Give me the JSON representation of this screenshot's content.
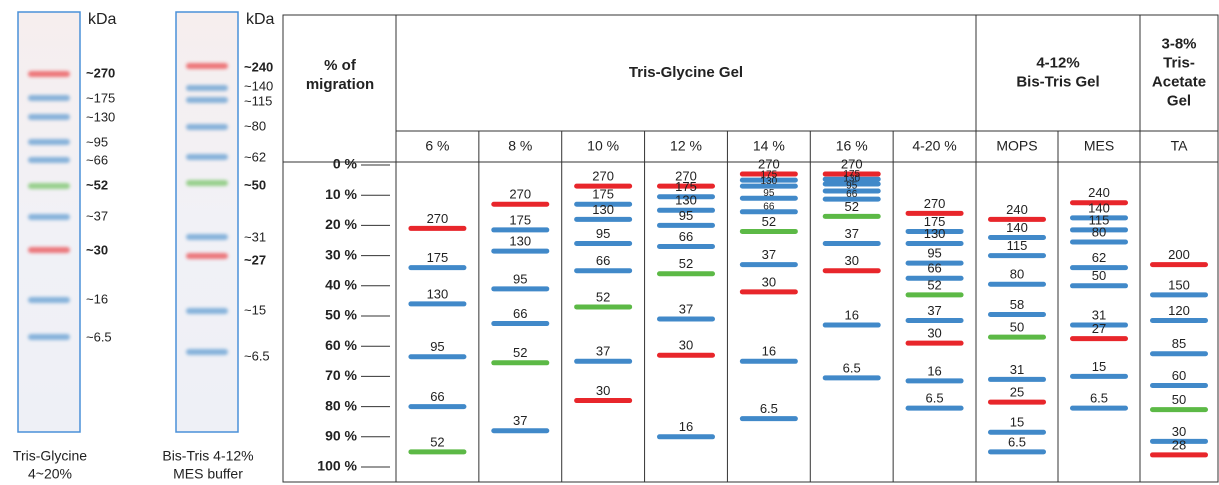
{
  "gels": [
    {
      "unit": "kDa",
      "caption": [
        "Tris-Glycine",
        "4~20%"
      ],
      "bands": [
        {
          "label": "~270",
          "color": "#e8262b",
          "bold": true
        },
        {
          "label": "~175",
          "color": "#4189c9",
          "bold": false
        },
        {
          "label": "~130",
          "color": "#4189c9",
          "bold": false
        },
        {
          "label": "~95",
          "color": "#4189c9",
          "bold": false
        },
        {
          "label": "~66",
          "color": "#4189c9",
          "bold": false
        },
        {
          "label": "~52",
          "color": "#5cb946",
          "bold": true
        },
        {
          "label": "~37",
          "color": "#4189c9",
          "bold": false
        },
        {
          "label": "~30",
          "color": "#e8262b",
          "bold": true
        },
        {
          "label": "~16",
          "color": "#4189c9",
          "bold": false
        },
        {
          "label": "~6.5",
          "color": "#4189c9",
          "bold": false
        }
      ]
    },
    {
      "unit": "kDa",
      "caption": [
        "Bis-Tris 4-12%",
        "MES buffer"
      ],
      "bands": [
        {
          "label": "~240",
          "color": "#e8262b",
          "bold": true
        },
        {
          "label": "~140",
          "color": "#4189c9",
          "bold": false
        },
        {
          "label": "~115",
          "color": "#4189c9",
          "bold": false
        },
        {
          "label": "~80",
          "color": "#4189c9",
          "bold": false
        },
        {
          "label": "~62",
          "color": "#4189c9",
          "bold": false
        },
        {
          "label": "~50",
          "color": "#5cb946",
          "bold": true
        },
        {
          "label": "~31",
          "color": "#4189c9",
          "bold": false
        },
        {
          "label": "~27",
          "color": "#e8262b",
          "bold": true
        },
        {
          "label": "~15",
          "color": "#4189c9",
          "bold": false
        },
        {
          "label": "~6.5",
          "color": "#4189c9",
          "bold": false
        }
      ]
    }
  ],
  "table": {
    "corner": [
      "% of",
      "migration"
    ],
    "ylim": [
      0,
      100
    ],
    "ticks": [
      {
        "value": 0,
        "label": "0 %"
      },
      {
        "value": 10,
        "label": "10 %"
      },
      {
        "value": 20,
        "label": "20 %"
      },
      {
        "value": 30,
        "label": "30 %"
      },
      {
        "value": 40,
        "label": "40 %"
      },
      {
        "value": 50,
        "label": "50 %"
      },
      {
        "value": 60,
        "label": "60 %"
      },
      {
        "value": 70,
        "label": "70 %"
      },
      {
        "value": 80,
        "label": "80 %"
      },
      {
        "value": 90,
        "label": "90 %"
      },
      {
        "value": 100,
        "label": "100 %"
      }
    ],
    "groups": [
      {
        "title": [
          "Tris-Glycine Gel"
        ],
        "lanes": [
          {
            "name": "6 %",
            "bands": [
              {
                "label": "270",
                "pos": 21,
                "color": "#e8262b"
              },
              {
                "label": "175",
                "pos": 34,
                "color": "#4189c9"
              },
              {
                "label": "130",
                "pos": 46,
                "color": "#4189c9"
              },
              {
                "label": "95",
                "pos": 63.5,
                "color": "#4189c9"
              },
              {
                "label": "66",
                "pos": 80,
                "color": "#4189c9"
              },
              {
                "label": "52",
                "pos": 95,
                "color": "#5cb946"
              }
            ]
          },
          {
            "name": "8 %",
            "bands": [
              {
                "label": "270",
                "pos": 13,
                "color": "#e8262b"
              },
              {
                "label": "175",
                "pos": 21.5,
                "color": "#4189c9"
              },
              {
                "label": "130",
                "pos": 28.5,
                "color": "#4189c9"
              },
              {
                "label": "95",
                "pos": 41,
                "color": "#4189c9"
              },
              {
                "label": "66",
                "pos": 52.5,
                "color": "#4189c9"
              },
              {
                "label": "52",
                "pos": 65.5,
                "color": "#5cb946"
              },
              {
                "label": "37",
                "pos": 88,
                "color": "#4189c9"
              }
            ]
          },
          {
            "name": "10 %",
            "bands": [
              {
                "label": "270",
                "pos": 7,
                "color": "#e8262b"
              },
              {
                "label": "175",
                "pos": 13,
                "color": "#4189c9"
              },
              {
                "label": "130",
                "pos": 18,
                "color": "#4189c9"
              },
              {
                "label": "95",
                "pos": 26,
                "color": "#4189c9"
              },
              {
                "label": "66",
                "pos": 35,
                "color": "#4189c9"
              },
              {
                "label": "52",
                "pos": 47,
                "color": "#5cb946"
              },
              {
                "label": "37",
                "pos": 65,
                "color": "#4189c9"
              },
              {
                "label": "30",
                "pos": 78,
                "color": "#e8262b"
              }
            ]
          },
          {
            "name": "12 %",
            "bands": [
              {
                "label": "270",
                "pos": 7,
                "color": "#e8262b"
              },
              {
                "label": "175",
                "pos": 10.5,
                "color": "#4189c9"
              },
              {
                "label": "130",
                "pos": 15,
                "color": "#4189c9"
              },
              {
                "label": "95",
                "pos": 20,
                "color": "#4189c9"
              },
              {
                "label": "66",
                "pos": 27,
                "color": "#4189c9"
              },
              {
                "label": "52",
                "pos": 36,
                "color": "#5cb946"
              },
              {
                "label": "37",
                "pos": 51,
                "color": "#4189c9"
              },
              {
                "label": "30",
                "pos": 63,
                "color": "#e8262b"
              },
              {
                "label": "16",
                "pos": 90,
                "color": "#4189c9"
              }
            ]
          },
          {
            "name": "14 %",
            "bands": [
              {
                "label": "270",
                "pos": 3,
                "color": "#e8262b"
              },
              {
                "label": "175",
                "pos": 5,
                "color": "#4189c9"
              },
              {
                "label": "130",
                "pos": 7,
                "color": "#4189c9"
              },
              {
                "label": "95",
                "pos": 11,
                "color": "#4189c9"
              },
              {
                "label": "66",
                "pos": 15.5,
                "color": "#4189c9"
              },
              {
                "label": "52",
                "pos": 22,
                "color": "#5cb946"
              },
              {
                "label": "37",
                "pos": 33,
                "color": "#4189c9"
              },
              {
                "label": "30",
                "pos": 42,
                "color": "#e8262b"
              },
              {
                "label": "16",
                "pos": 65,
                "color": "#4189c9"
              },
              {
                "label": "6.5",
                "pos": 84,
                "color": "#4189c9"
              }
            ]
          },
          {
            "name": "16 %",
            "bands": [
              {
                "label": "270",
                "pos": 3,
                "color": "#e8262b"
              },
              {
                "label": "175",
                "pos": 4.7,
                "color": "#4189c9"
              },
              {
                "label": "130",
                "pos": 6.3,
                "color": "#4189c9"
              },
              {
                "label": "95",
                "pos": 8.6,
                "color": "#4189c9"
              },
              {
                "label": "66",
                "pos": 11.3,
                "color": "#4189c9"
              },
              {
                "label": "52",
                "pos": 17,
                "color": "#5cb946"
              },
              {
                "label": "37",
                "pos": 26,
                "color": "#4189c9"
              },
              {
                "label": "30",
                "pos": 35,
                "color": "#e8262b"
              },
              {
                "label": "16",
                "pos": 53,
                "color": "#4189c9"
              },
              {
                "label": "6.5",
                "pos": 70.5,
                "color": "#4189c9"
              }
            ]
          },
          {
            "name": "4-20 %",
            "bands": [
              {
                "label": "270",
                "pos": 16,
                "color": "#e8262b"
              },
              {
                "label": "175",
                "pos": 22,
                "color": "#4189c9"
              },
              {
                "label": "130",
                "pos": 26,
                "color": "#4189c9"
              },
              {
                "label": "95",
                "pos": 32.5,
                "color": "#4189c9"
              },
              {
                "label": "66",
                "pos": 37.5,
                "color": "#4189c9"
              },
              {
                "label": "52",
                "pos": 43,
                "color": "#5cb946"
              },
              {
                "label": "37",
                "pos": 51.5,
                "color": "#4189c9"
              },
              {
                "label": "30",
                "pos": 59,
                "color": "#e8262b"
              },
              {
                "label": "16",
                "pos": 71.5,
                "color": "#4189c9"
              },
              {
                "label": "6.5",
                "pos": 80.5,
                "color": "#4189c9"
              }
            ]
          }
        ]
      },
      {
        "title": [
          "4-12%",
          "Bis-Tris Gel"
        ],
        "lanes": [
          {
            "name": "MOPS",
            "bands": [
              {
                "label": "240",
                "pos": 18,
                "color": "#e8262b"
              },
              {
                "label": "140",
                "pos": 24,
                "color": "#4189c9"
              },
              {
                "label": "115",
                "pos": 30,
                "color": "#4189c9"
              },
              {
                "label": "80",
                "pos": 39.5,
                "color": "#4189c9"
              },
              {
                "label": "58",
                "pos": 49.5,
                "color": "#4189c9"
              },
              {
                "label": "50",
                "pos": 57,
                "color": "#5cb946"
              },
              {
                "label": "31",
                "pos": 71,
                "color": "#4189c9"
              },
              {
                "label": "25",
                "pos": 78.5,
                "color": "#e8262b"
              },
              {
                "label": "15",
                "pos": 88.5,
                "color": "#4189c9"
              },
              {
                "label": "6.5",
                "pos": 95,
                "color": "#4189c9"
              }
            ]
          },
          {
            "name": "MES",
            "bands": [
              {
                "label": "240",
                "pos": 12.5,
                "color": "#e8262b"
              },
              {
                "label": "140",
                "pos": 17.5,
                "color": "#4189c9"
              },
              {
                "label": "115",
                "pos": 21.5,
                "color": "#4189c9"
              },
              {
                "label": "80",
                "pos": 25.5,
                "color": "#4189c9"
              },
              {
                "label": "62",
                "pos": 34,
                "color": "#4189c9"
              },
              {
                "label": "50",
                "pos": 40,
                "color": "#4189c9"
              },
              {
                "label": "31",
                "pos": 53,
                "color": "#4189c9"
              },
              {
                "label": "27",
                "pos": 57.5,
                "color": "#e8262b"
              },
              {
                "label": "15",
                "pos": 70,
                "color": "#4189c9"
              },
              {
                "label": "6.5",
                "pos": 80.5,
                "color": "#4189c9"
              }
            ]
          }
        ]
      },
      {
        "title": [
          "3-8%",
          "Tris-",
          "Acetate",
          "Gel"
        ],
        "lanes": [
          {
            "name": "TA",
            "bands": [
              {
                "label": "200",
                "pos": 33,
                "color": "#e8262b"
              },
              {
                "label": "150",
                "pos": 43,
                "color": "#4189c9"
              },
              {
                "label": "120",
                "pos": 51.5,
                "color": "#4189c9"
              },
              {
                "label": "85",
                "pos": 62.5,
                "color": "#4189c9"
              },
              {
                "label": "60",
                "pos": 73,
                "color": "#4189c9"
              },
              {
                "label": "50",
                "pos": 81,
                "color": "#5cb946"
              },
              {
                "label": "30",
                "pos": 91.5,
                "color": "#4189c9"
              },
              {
                "label": "28",
                "pos": 96,
                "color": "#e8262b"
              }
            ]
          }
        ]
      }
    ]
  }
}
